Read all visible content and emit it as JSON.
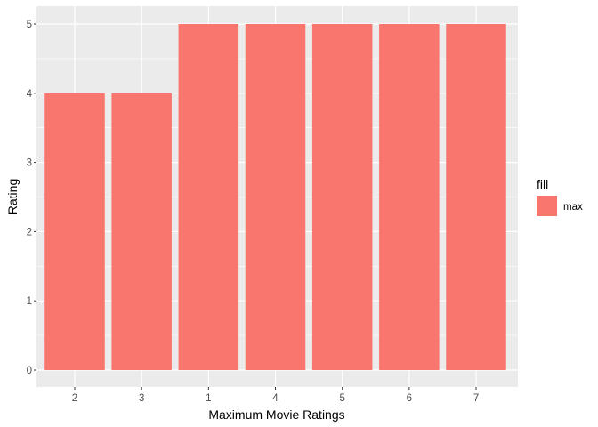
{
  "chart_data": {
    "type": "bar",
    "categories": [
      "2",
      "3",
      "1",
      "4",
      "5",
      "6",
      "7"
    ],
    "series": [
      {
        "name": "max",
        "values": [
          4,
          4,
          5,
          5,
          5,
          5,
          5
        ],
        "color": "#F8766D"
      }
    ],
    "title": "",
    "xlabel": "Maximum Movie Ratings",
    "ylabel": "Rating",
    "ylim": [
      0,
      5.25
    ],
    "yticks": [
      0,
      1,
      2,
      3,
      4,
      5
    ],
    "grid": true,
    "legend": {
      "title": "fill",
      "placement": "right"
    },
    "panel_background": "#EBEBEB",
    "gridline_color": "#FFFFFF"
  }
}
